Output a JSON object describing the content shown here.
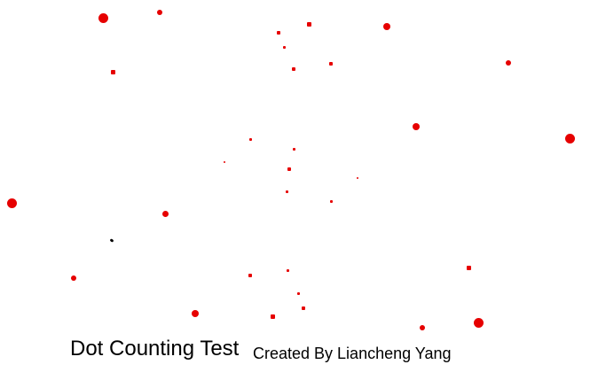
{
  "title": "Dot Counting Test",
  "credit": "Created By Liancheng Yang",
  "colors": {
    "background": "#ffffff",
    "dot": "#e60000",
    "odd_dot": "#000000",
    "text": "#000000"
  }
}
